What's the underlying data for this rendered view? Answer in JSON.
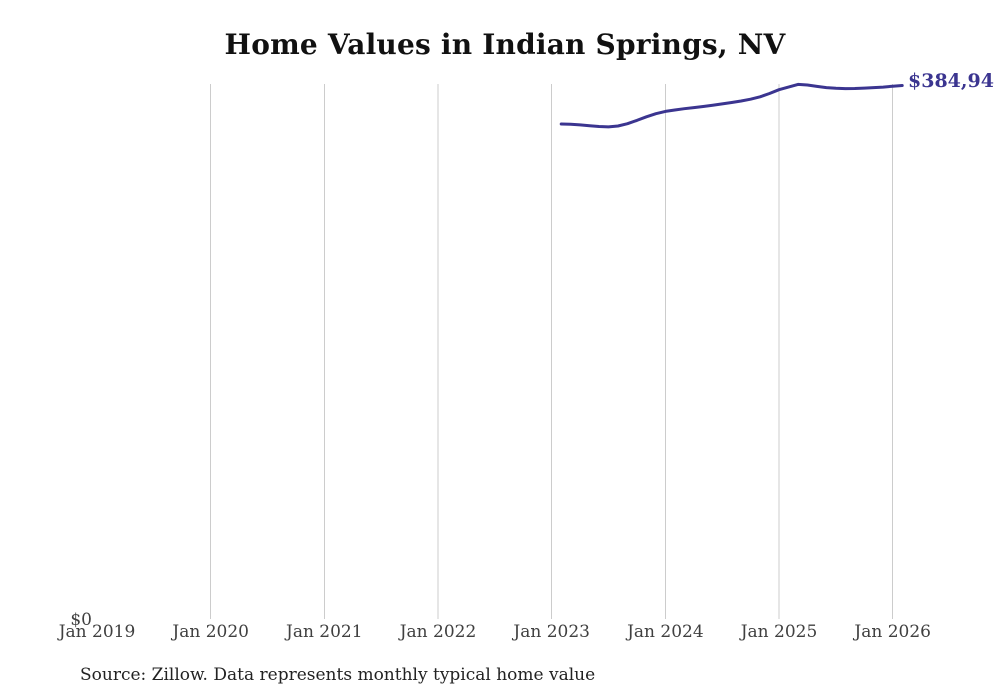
{
  "title": "Home Values in Indian Springs, NV",
  "end_label": "$384,94",
  "source_note": "Source: Zillow. Data represents monthly typical home value",
  "colors": {
    "line": "#3b3590",
    "annotation": "#3b3590",
    "grid": "#cccccc",
    "axis_text": "#404040",
    "title_text": "#111111",
    "source_text": "#222222",
    "background": "#ffffff"
  },
  "x_axis": {
    "ticks": [
      {
        "label": "Jan 2019",
        "gridline": false
      },
      {
        "label": "Jan 2020",
        "gridline": true
      },
      {
        "label": "Jan 2021",
        "gridline": true
      },
      {
        "label": "Jan 2022",
        "gridline": true
      },
      {
        "label": "Jan 2023",
        "gridline": true
      },
      {
        "label": "Jan 2024",
        "gridline": true
      },
      {
        "label": "Jan 2025",
        "gridline": true
      },
      {
        "label": "Jan 2026",
        "gridline": true
      }
    ]
  },
  "y_axis": {
    "labels": [
      "$0"
    ]
  },
  "chart_data": {
    "type": "line",
    "title": "Home Values in Indian Springs, NV",
    "xlabel": "",
    "ylabel": "",
    "x_tick_labels": [
      "Jan 2019",
      "Jan 2020",
      "Jan 2021",
      "Jan 2022",
      "Jan 2023",
      "Jan 2024",
      "Jan 2025",
      "Jan 2026"
    ],
    "y_tick_labels": [
      "$0"
    ],
    "ylim": [
      0,
      386000
    ],
    "xlim_years": [
      2019,
      2026.3
    ],
    "grid": "vertical-only",
    "legend": "none",
    "end_annotation_display": "$384,94",
    "series": [
      {
        "name": "Monthly typical home value",
        "points": [
          {
            "date": "2023-01",
            "value": 357200
          },
          {
            "date": "2023-02",
            "value": 357000
          },
          {
            "date": "2023-03",
            "value": 356600
          },
          {
            "date": "2023-04",
            "value": 355900
          },
          {
            "date": "2023-05",
            "value": 355400
          },
          {
            "date": "2023-06",
            "value": 355100
          },
          {
            "date": "2023-07",
            "value": 355800
          },
          {
            "date": "2023-08",
            "value": 357400
          },
          {
            "date": "2023-09",
            "value": 359800
          },
          {
            "date": "2023-10",
            "value": 362400
          },
          {
            "date": "2023-11",
            "value": 364600
          },
          {
            "date": "2023-12",
            "value": 366300
          },
          {
            "date": "2024-01",
            "value": 367300
          },
          {
            "date": "2024-02",
            "value": 368200
          },
          {
            "date": "2024-03",
            "value": 369000
          },
          {
            "date": "2024-04",
            "value": 369800
          },
          {
            "date": "2024-05",
            "value": 370700
          },
          {
            "date": "2024-06",
            "value": 371700
          },
          {
            "date": "2024-07",
            "value": 372700
          },
          {
            "date": "2024-08",
            "value": 373800
          },
          {
            "date": "2024-09",
            "value": 375100
          },
          {
            "date": "2024-10",
            "value": 376800
          },
          {
            "date": "2024-11",
            "value": 379200
          },
          {
            "date": "2024-12",
            "value": 381900
          },
          {
            "date": "2025-01",
            "value": 383800
          },
          {
            "date": "2025-02",
            "value": 385700
          },
          {
            "date": "2025-03",
            "value": 385300
          },
          {
            "date": "2025-04",
            "value": 384300
          },
          {
            "date": "2025-05",
            "value": 383400
          },
          {
            "date": "2025-06",
            "value": 382900
          },
          {
            "date": "2025-07",
            "value": 382700
          },
          {
            "date": "2025-08",
            "value": 382800
          },
          {
            "date": "2025-09",
            "value": 383100
          },
          {
            "date": "2025-10",
            "value": 383400
          },
          {
            "date": "2025-11",
            "value": 383800
          },
          {
            "date": "2025-12",
            "value": 384400
          },
          {
            "date": "2026-01",
            "value": 384940
          }
        ]
      }
    ]
  }
}
